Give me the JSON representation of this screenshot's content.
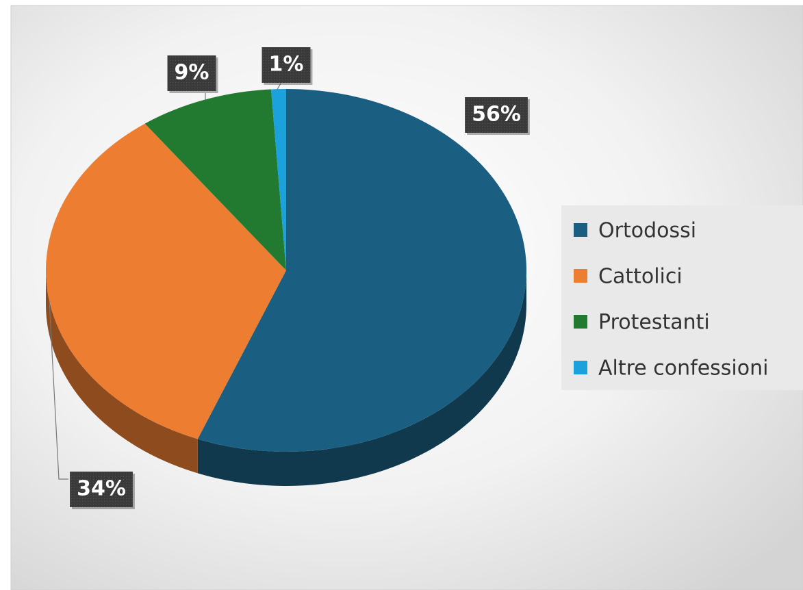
{
  "chart_data": {
    "type": "pie",
    "categories": [
      "Ortodossi",
      "Cattolici",
      "Protestanti",
      "Altre confessioni"
    ],
    "values": [
      56,
      34,
      9,
      1
    ],
    "value_labels": [
      "56%",
      "34%",
      "9%",
      "1%"
    ],
    "colors": [
      "#1a5f82",
      "#ed7d31",
      "#217a2f",
      "#1ba1dc"
    ],
    "legend": "right"
  }
}
